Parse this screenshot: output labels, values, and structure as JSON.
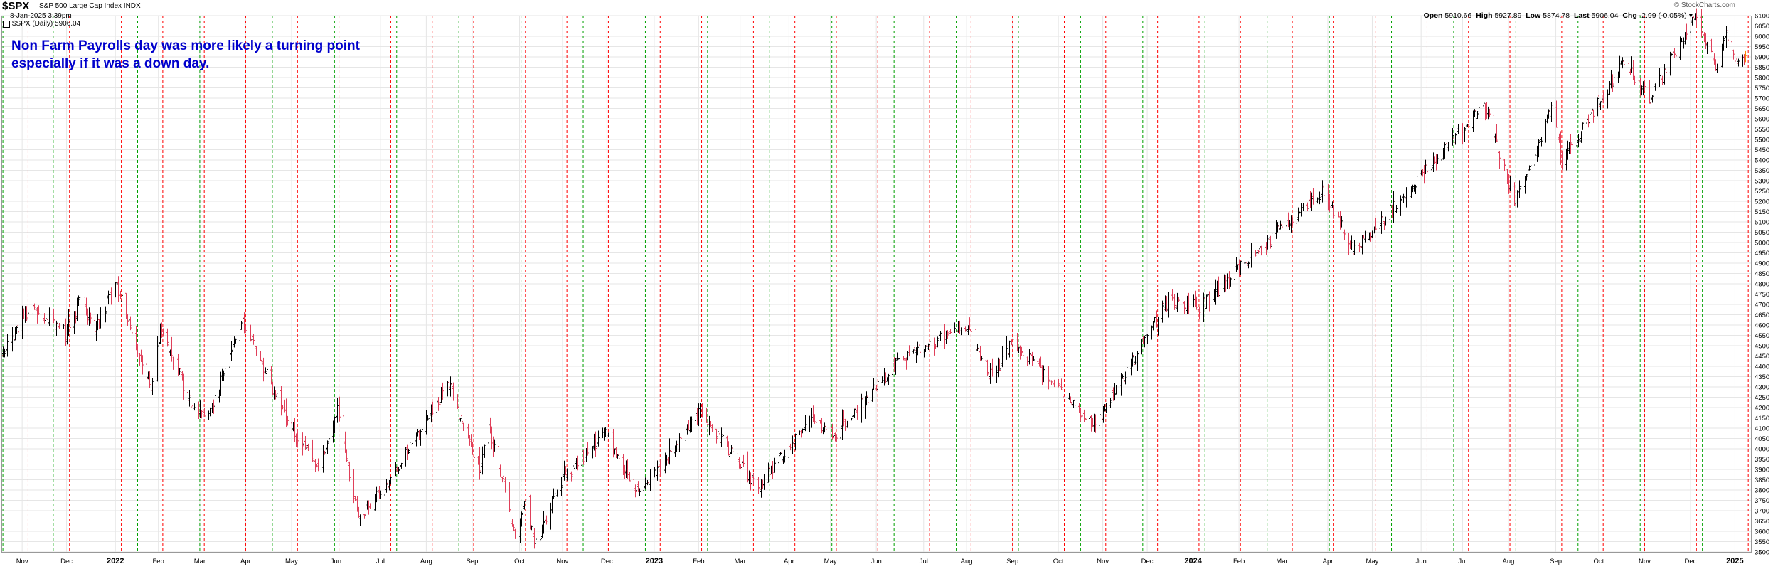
{
  "header": {
    "symbol": "$SPX",
    "description": "S&P 500 Large Cap Index INDX",
    "datetime": "8-Jan-2025 3:39pm",
    "legend": "$SPX (Daily) 5906.04",
    "open_label": "Open",
    "open": "5910.66",
    "high_label": "High",
    "high": "5927.89",
    "low_label": "Low",
    "low": "5874.78",
    "last_label": "Last",
    "last": "5906.04",
    "chg_label": "Chg",
    "chg": "-2.99 (-0.05%)",
    "brand": "© StockCharts.com"
  },
  "annotation": {
    "line1": "Non Farm Payrolls day was more likely a turning point",
    "line2": "especially if it was a down day."
  },
  "colors": {
    "up": "#000000",
    "down": "#e0405a",
    "red_line": "#ff0000",
    "green_line": "#00a000",
    "annotation": "#0000cc",
    "grid": "#e6e6e6"
  },
  "chart_data": {
    "type": "ohlc",
    "grid": true,
    "y_axis_side": "right",
    "ylim": [
      3500,
      6100
    ],
    "y_ticks": [
      3500,
      3550,
      3600,
      3650,
      3700,
      3750,
      3800,
      3850,
      3900,
      3950,
      4000,
      4050,
      4100,
      4150,
      4200,
      4250,
      4300,
      4350,
      4400,
      4450,
      4500,
      4550,
      4600,
      4650,
      4700,
      4750,
      4800,
      4850,
      4900,
      4950,
      5000,
      5050,
      5100,
      5150,
      5200,
      5250,
      5300,
      5350,
      5400,
      5450,
      5500,
      5550,
      5600,
      5650,
      5700,
      5750,
      5800,
      5850,
      5900,
      5950,
      6000,
      6050,
      6100
    ],
    "x_labels": [
      "Nov",
      "Dec",
      "2022",
      "Feb",
      "Mar",
      "Apr",
      "May",
      "Jun",
      "Jul",
      "Aug",
      "Sep",
      "Oct",
      "Nov",
      "Dec",
      "2023",
      "Feb",
      "Mar",
      "Apr",
      "May",
      "Jun",
      "Jul",
      "Aug",
      "Sep",
      "Oct",
      "Nov",
      "Dec",
      "2024",
      "Feb",
      "Mar",
      "Apr",
      "May",
      "Jun",
      "Jul",
      "Aug",
      "Sep",
      "Oct",
      "Nov",
      "Dec",
      "2025"
    ],
    "x_bold": [
      "2022",
      "2023",
      "2024",
      "2025"
    ],
    "date_start": "2021-10-18",
    "date_end": "2025-01-08",
    "series_waypoints": [
      [
        "2021-10-18",
        4470
      ],
      [
        "2021-11-08",
        4700
      ],
      [
        "2021-11-30",
        4560
      ],
      [
        "2021-12-10",
        4710
      ],
      [
        "2021-12-20",
        4580
      ],
      [
        "2022-01-03",
        4800
      ],
      [
        "2022-01-27",
        4300
      ],
      [
        "2022-02-02",
        4590
      ],
      [
        "2022-02-23",
        4220
      ],
      [
        "2022-03-08",
        4170
      ],
      [
        "2022-03-29",
        4630
      ],
      [
        "2022-04-26",
        4180
      ],
      [
        "2022-05-20",
        3900
      ],
      [
        "2022-06-02",
        4180
      ],
      [
        "2022-06-16",
        3670
      ],
      [
        "2022-07-05",
        3820
      ],
      [
        "2022-08-16",
        4310
      ],
      [
        "2022-09-06",
        3910
      ],
      [
        "2022-09-12",
        4110
      ],
      [
        "2022-09-30",
        3590
      ],
      [
        "2022-10-07",
        3740
      ],
      [
        "2022-10-13",
        3520
      ],
      [
        "2022-11-01",
        3860
      ],
      [
        "2022-11-30",
        4080
      ],
      [
        "2022-12-22",
        3780
      ],
      [
        "2023-01-06",
        3900
      ],
      [
        "2023-02-02",
        4180
      ],
      [
        "2023-03-13",
        3810
      ],
      [
        "2023-04-18",
        4150
      ],
      [
        "2023-05-04",
        4060
      ],
      [
        "2023-06-15",
        4420
      ],
      [
        "2023-07-31",
        4600
      ],
      [
        "2023-08-18",
        4340
      ],
      [
        "2023-09-01",
        4520
      ],
      [
        "2023-10-27",
        4110
      ],
      [
        "2023-12-15",
        4720
      ],
      [
        "2024-01-05",
        4690
      ],
      [
        "2024-03-28",
        5260
      ],
      [
        "2024-04-19",
        4960
      ],
      [
        "2024-07-16",
        5670
      ],
      [
        "2024-08-05",
        5180
      ],
      [
        "2024-08-30",
        5650
      ],
      [
        "2024-09-06",
        5400
      ],
      [
        "2024-10-18",
        5870
      ],
      [
        "2024-11-04",
        5700
      ],
      [
        "2024-12-06",
        6100
      ],
      [
        "2024-12-19",
        5860
      ],
      [
        "2024-12-26",
        6040
      ],
      [
        "2025-01-02",
        5840
      ],
      [
        "2025-01-08",
        5906
      ]
    ],
    "last_bar": {
      "open": 5910.66,
      "high": 5927.89,
      "low": 5874.78,
      "close": 5906.04
    },
    "red_lines": [
      "2021-11-05",
      "2021-12-03",
      "2022-01-07",
      "2022-02-04",
      "2022-03-04",
      "2022-04-01",
      "2022-05-06",
      "2022-06-03",
      "2022-07-08",
      "2022-08-05",
      "2022-09-02",
      "2022-10-07",
      "2022-11-04",
      "2022-12-02",
      "2023-01-06",
      "2023-02-03",
      "2023-03-10",
      "2023-04-07",
      "2023-05-05",
      "2023-06-02",
      "2023-07-07",
      "2023-08-04",
      "2023-09-01",
      "2023-10-06",
      "2023-11-03",
      "2023-12-08",
      "2024-01-05",
      "2024-02-02",
      "2024-03-08",
      "2024-04-05",
      "2024-05-03",
      "2024-06-07",
      "2024-07-05",
      "2024-08-02",
      "2024-09-06",
      "2024-10-04",
      "2024-11-01",
      "2024-12-06",
      "2025-01-10"
    ],
    "green_lines": [
      "2021-10-19",
      "2021-11-22",
      "2022-01-18",
      "2022-03-01",
      "2022-04-19",
      "2022-05-31",
      "2022-07-12",
      "2022-08-23",
      "2022-10-04",
      "2022-11-15",
      "2022-12-27",
      "2023-02-07",
      "2023-03-21",
      "2023-05-02",
      "2023-06-13",
      "2023-07-25",
      "2023-09-05",
      "2023-10-17",
      "2023-11-28",
      "2024-01-09",
      "2024-02-20",
      "2024-04-02",
      "2024-05-14",
      "2024-06-25",
      "2024-08-06",
      "2024-09-17",
      "2024-10-29",
      "2024-12-10"
    ]
  }
}
